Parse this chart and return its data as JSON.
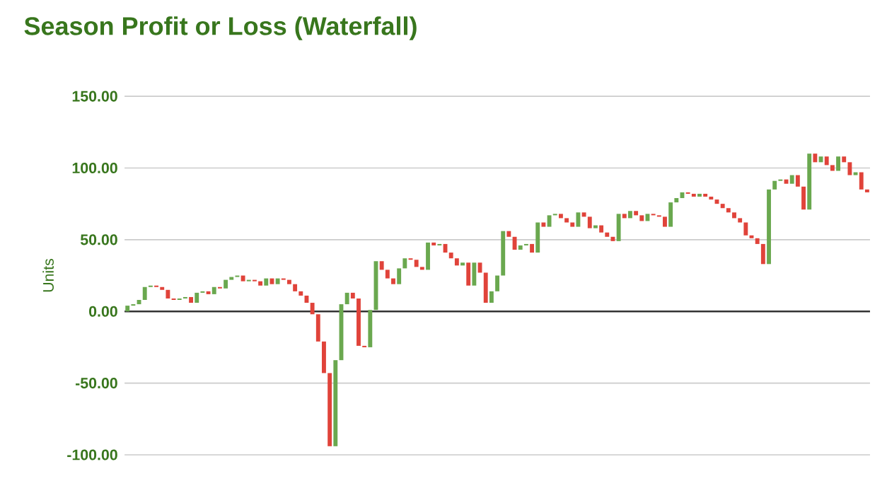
{
  "chart_data": {
    "type": "bar",
    "title": "Season Profit or Loss (Waterfall)",
    "ylabel": "Units",
    "categories": [
      null,
      null,
      null,
      null,
      null,
      null,
      null,
      null,
      null,
      null,
      null,
      null,
      null,
      null,
      null,
      null,
      null,
      null,
      null,
      null,
      null,
      null,
      null,
      null,
      null,
      null,
      null,
      null,
      null,
      null,
      null,
      null,
      null,
      null,
      null,
      null,
      null,
      null,
      null,
      null,
      null,
      null,
      null,
      null,
      null,
      null,
      null,
      null,
      null,
      null,
      null,
      null,
      null,
      null,
      null,
      null,
      null,
      null,
      null,
      null,
      null,
      null,
      null,
      null,
      null,
      null,
      null,
      null,
      null,
      null,
      null,
      null,
      null,
      null,
      null,
      null,
      null,
      null,
      null,
      null,
      null,
      null,
      null,
      null,
      null,
      null,
      null,
      null,
      null,
      null,
      null,
      null,
      null,
      null,
      null,
      null,
      null,
      null,
      null,
      null,
      null,
      null,
      null,
      null,
      null,
      null,
      null,
      null,
      null,
      null,
      null,
      null,
      null,
      null,
      null,
      null,
      null,
      null,
      null,
      null,
      null,
      null,
      null,
      null,
      null,
      null,
      null,
      null,
      null
    ],
    "base": [
      0,
      4,
      5,
      8,
      17,
      18,
      17,
      15,
      9,
      8,
      9,
      10,
      6,
      13,
      14,
      12,
      17,
      16,
      22,
      24,
      25,
      21,
      22,
      21,
      18,
      23,
      19,
      23,
      22,
      19,
      14,
      11,
      6,
      -2,
      -21,
      -43,
      -94,
      -34,
      5,
      13,
      9,
      -24,
      -25,
      1,
      35,
      29,
      23,
      19,
      30,
      37,
      36,
      31,
      29,
      48,
      46,
      47,
      41,
      37,
      32,
      34,
      18,
      34,
      27,
      6,
      14,
      25,
      56,
      52,
      43,
      46,
      47,
      41,
      62,
      59,
      67,
      68,
      65,
      62,
      59,
      69,
      66,
      58,
      60,
      55,
      52,
      49,
      68,
      65,
      70,
      67,
      63,
      68,
      67,
      66,
      59,
      76,
      79,
      83,
      82,
      80,
      82,
      80,
      78,
      75,
      72,
      69,
      65,
      62,
      53,
      51,
      47,
      33,
      85,
      91,
      92,
      89,
      95,
      87,
      71,
      110,
      104,
      108,
      102,
      98,
      108,
      104,
      95,
      97,
      85
    ],
    "values": [
      4,
      1,
      3,
      9,
      1,
      -1,
      -2,
      -6,
      -1,
      1,
      1,
      -4,
      7,
      1,
      -2,
      5,
      -1,
      6,
      2,
      1,
      -4,
      1,
      -1,
      -3,
      5,
      -4,
      4,
      -1,
      -3,
      -5,
      -3,
      -5,
      -8,
      -19,
      -22,
      -51,
      60,
      39,
      8,
      -4,
      -33,
      -1,
      26,
      34,
      -6,
      -6,
      -4,
      11,
      7,
      -1,
      -5,
      -2,
      19,
      -2,
      1,
      -6,
      -4,
      -5,
      2,
      -16,
      16,
      -7,
      -21,
      8,
      11,
      31,
      -4,
      -9,
      3,
      1,
      -6,
      21,
      -3,
      8,
      1,
      -3,
      -3,
      -3,
      10,
      -3,
      -8,
      2,
      -5,
      -3,
      -3,
      19,
      -3,
      5,
      -3,
      -4,
      5,
      -1,
      -1,
      -7,
      17,
      3,
      4,
      -1,
      -2,
      2,
      -2,
      -2,
      -3,
      -3,
      -3,
      -4,
      -3,
      -9,
      -2,
      -4,
      -14,
      52,
      6,
      1,
      -3,
      6,
      -8,
      -16,
      39,
      -6,
      4,
      -6,
      -4,
      10,
      -4,
      -9,
      2,
      -12,
      -2
    ],
    "colors": [
      "#6aa84f",
      "#6aa84f",
      "#6aa84f",
      "#6aa84f",
      "#6aa84f",
      "#e0433a",
      "#e0433a",
      "#e0433a",
      "#e0433a",
      "#6aa84f",
      "#6aa84f",
      "#e0433a",
      "#6aa84f",
      "#6aa84f",
      "#e0433a",
      "#6aa84f",
      "#e0433a",
      "#6aa84f",
      "#6aa84f",
      "#6aa84f",
      "#e0433a",
      "#6aa84f",
      "#e0433a",
      "#e0433a",
      "#6aa84f",
      "#e0433a",
      "#6aa84f",
      "#e0433a",
      "#e0433a",
      "#e0433a",
      "#e0433a",
      "#e0433a",
      "#e0433a",
      "#e0433a",
      "#e0433a",
      "#e0433a",
      "#6aa84f",
      "#6aa84f",
      "#6aa84f",
      "#e0433a",
      "#e0433a",
      "#e0433a",
      "#6aa84f",
      "#6aa84f",
      "#e0433a",
      "#e0433a",
      "#e0433a",
      "#6aa84f",
      "#6aa84f",
      "#e0433a",
      "#e0433a",
      "#e0433a",
      "#6aa84f",
      "#e0433a",
      "#6aa84f",
      "#e0433a",
      "#e0433a",
      "#e0433a",
      "#6aa84f",
      "#e0433a",
      "#6aa84f",
      "#e0433a",
      "#e0433a",
      "#6aa84f",
      "#6aa84f",
      "#6aa84f",
      "#e0433a",
      "#e0433a",
      "#6aa84f",
      "#6aa84f",
      "#e0433a",
      "#6aa84f",
      "#e0433a",
      "#6aa84f",
      "#6aa84f",
      "#e0433a",
      "#e0433a",
      "#e0433a",
      "#6aa84f",
      "#e0433a",
      "#e0433a",
      "#6aa84f",
      "#e0433a",
      "#e0433a",
      "#e0433a",
      "#6aa84f",
      "#e0433a",
      "#6aa84f",
      "#e0433a",
      "#e0433a",
      "#6aa84f",
      "#e0433a",
      "#e0433a",
      "#e0433a",
      "#6aa84f",
      "#6aa84f",
      "#6aa84f",
      "#e0433a",
      "#e0433a",
      "#6aa84f",
      "#e0433a",
      "#e0433a",
      "#e0433a",
      "#e0433a",
      "#e0433a",
      "#e0433a",
      "#e0433a",
      "#e0433a",
      "#e0433a",
      "#e0433a",
      "#e0433a",
      "#6aa84f",
      "#6aa84f",
      "#6aa84f",
      "#e0433a",
      "#6aa84f",
      "#e0433a",
      "#e0433a",
      "#6aa84f",
      "#e0433a",
      "#6aa84f",
      "#e0433a",
      "#e0433a",
      "#6aa84f",
      "#e0433a",
      "#e0433a",
      "#6aa84f",
      "#e0433a",
      "#e0433a"
    ],
    "ylim": [
      -100,
      150
    ],
    "yticks": [
      {
        "value": -100,
        "label": "-100.00"
      },
      {
        "value": -50,
        "label": "-50.00"
      },
      {
        "value": 0,
        "label": "0.00"
      },
      {
        "value": 50,
        "label": "50.00"
      },
      {
        "value": 100,
        "label": "100.00"
      },
      {
        "value": 150,
        "label": "150.00"
      }
    ],
    "grid": "y",
    "ref_lines": [
      {
        "axis": "y",
        "value": 0,
        "color": "#333333"
      }
    ]
  }
}
